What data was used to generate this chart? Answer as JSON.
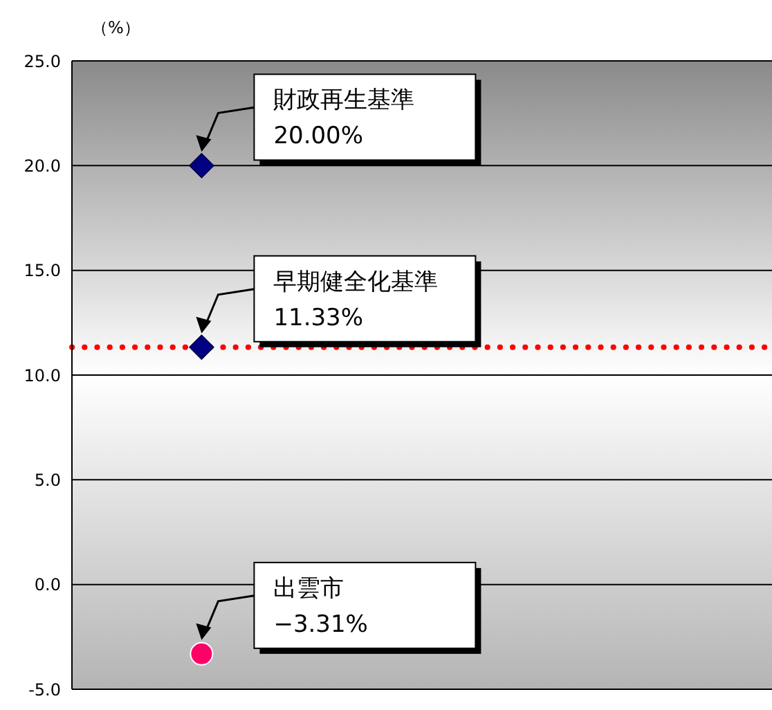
{
  "chart_data": {
    "type": "scatter",
    "ylabel": "（%）",
    "categories": [
      null
    ],
    "series": [
      {
        "color": "#000080",
        "values": [
          20.0
        ],
        "marker": "diamond"
      },
      {
        "color": "#000080",
        "values": [
          11.33
        ],
        "marker": "diamond"
      },
      {
        "color": "#ff0066",
        "values": [
          -3.31
        ],
        "marker": "circle"
      }
    ],
    "ylim": [
      -5,
      25
    ],
    "yticks": [
      {
        "value": -5,
        "label": "-5.0"
      },
      {
        "value": 0,
        "label": "0.0"
      },
      {
        "value": 5,
        "label": "5.0"
      },
      {
        "value": 10,
        "label": "10.0"
      },
      {
        "value": 15,
        "label": "15.0"
      },
      {
        "value": 20,
        "label": "20.0"
      },
      {
        "value": 25,
        "label": "25.0"
      }
    ],
    "grid": "y",
    "ref_lines": [
      {
        "axis": "y",
        "value": 11.33,
        "color": "#ff0000",
        "line_style": "dotted"
      }
    ],
    "annotations": [
      "財政再生基準\n20.00%",
      "早期健全化基準\n11.33%",
      "出雲市\n−3.31%"
    ]
  }
}
